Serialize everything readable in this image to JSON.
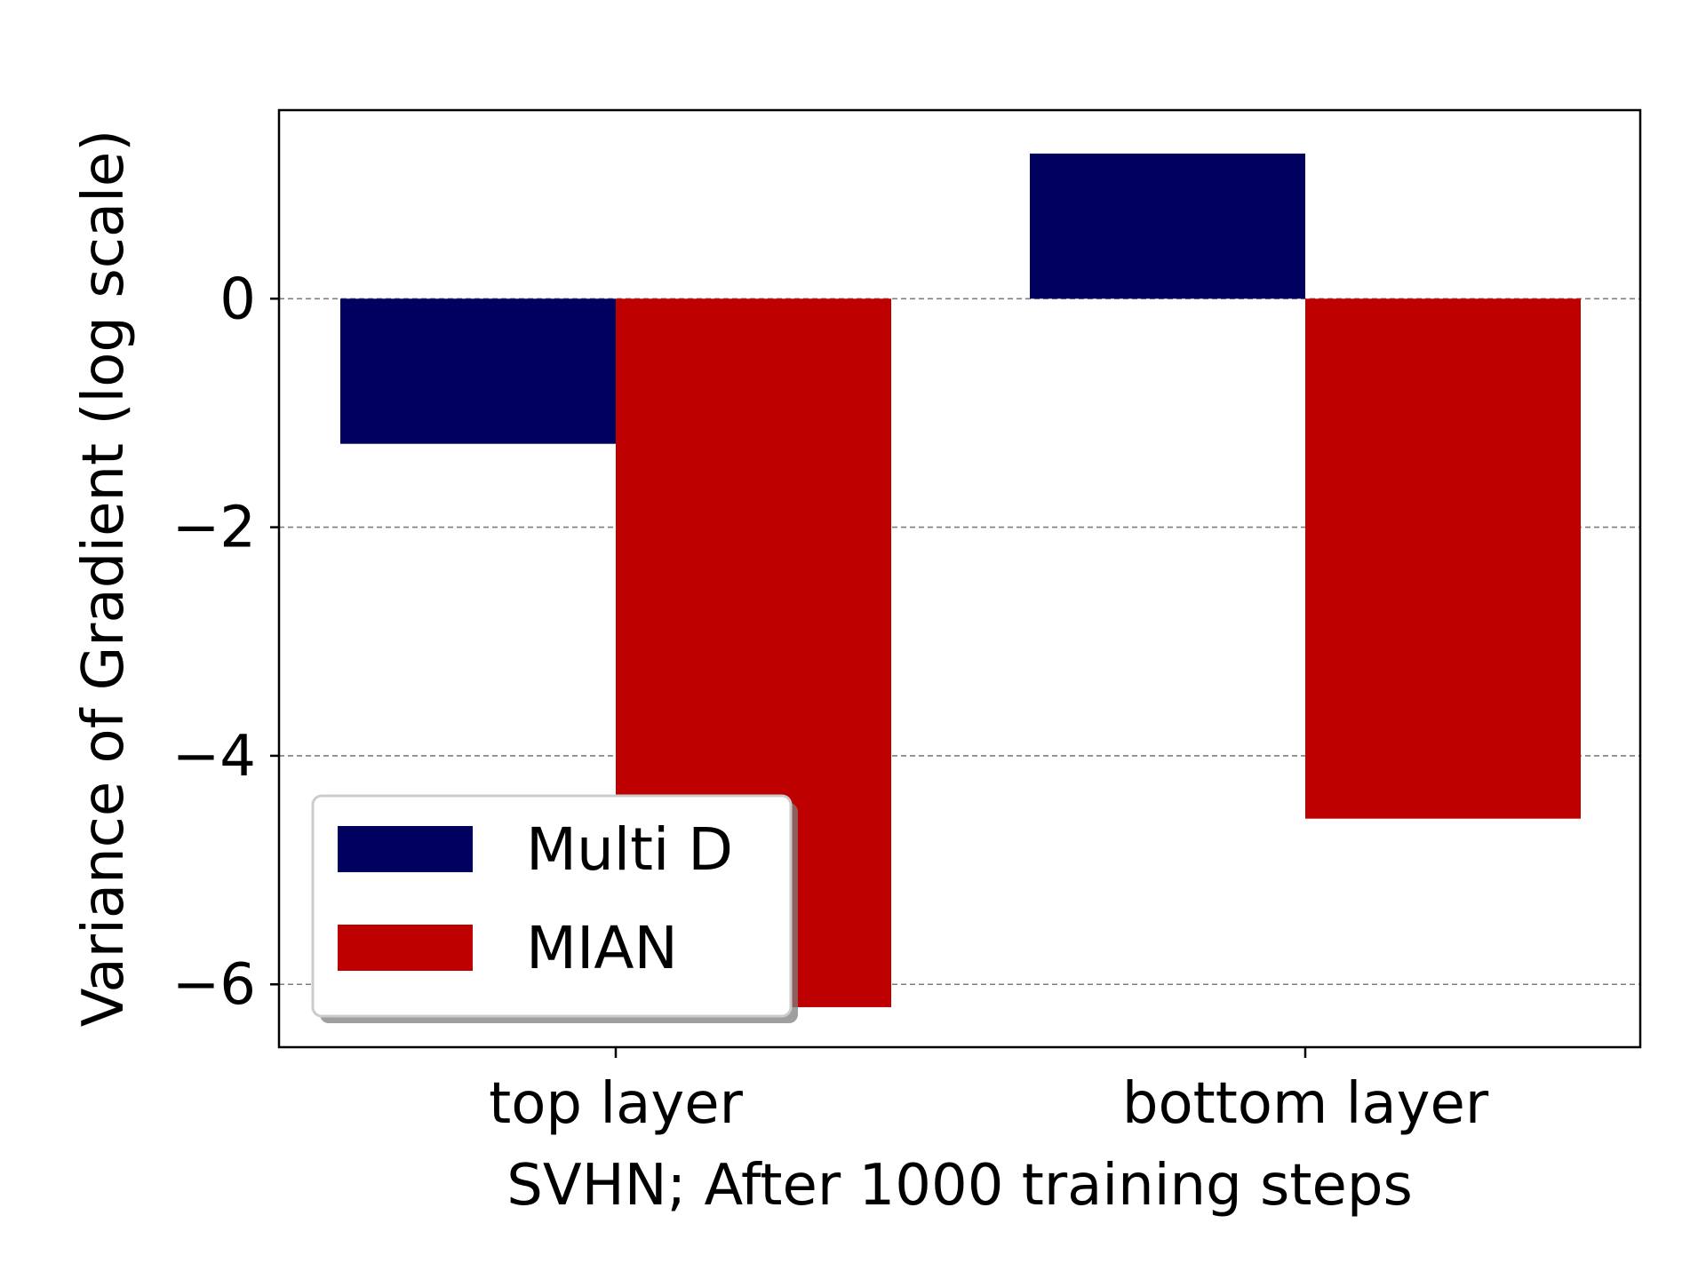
{
  "chart_data": {
    "type": "bar",
    "title": "",
    "xlabel": "SVHN; After 1000 training steps",
    "ylabel": "Variance of Gradient (log scale)",
    "categories": [
      "top layer",
      "bottom layer"
    ],
    "series": [
      {
        "name": "Multi D",
        "values": [
          -1.27,
          1.27
        ],
        "color": "#00005f"
      },
      {
        "name": "MIAN",
        "values": [
          -6.2,
          -4.55
        ],
        "color": "#bf0000"
      }
    ],
    "ylim": [
      -6.55,
      1.65
    ],
    "yticks": [
      0,
      -2,
      -4,
      -6
    ],
    "ytick_labels": [
      "0",
      "−2",
      "−4",
      "−6"
    ],
    "grid": true,
    "grid_axis": "y",
    "legend_position": "lower-left"
  }
}
